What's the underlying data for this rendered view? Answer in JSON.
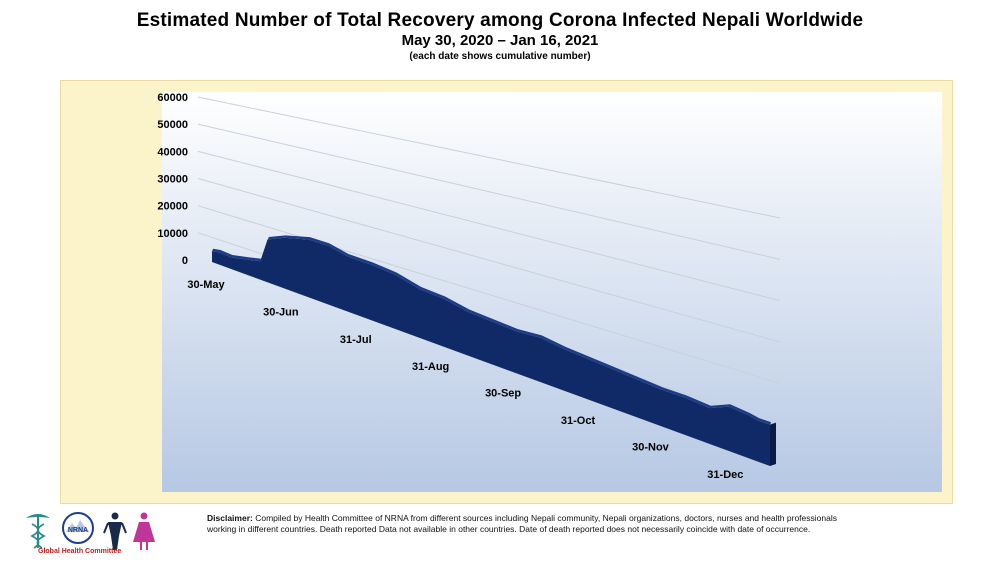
{
  "chart_data": {
    "type": "area",
    "title": "Estimated Number of Total Recovery among Corona Infected Nepali Worldwide",
    "subtitle": "May 30, 2020 – Jan 16, 2021",
    "note": "(each date shows cumulative number)",
    "ylim": [
      0,
      60000
    ],
    "y_ticks": [
      "0",
      "10000",
      "20000",
      "30000",
      "40000",
      "50000",
      "60000"
    ],
    "x_tick_labels": [
      "30-May",
      "30-Jun",
      "31-Jul",
      "31-Aug",
      "30-Sep",
      "31-Oct",
      "30-Nov",
      "31-Dec"
    ],
    "x_tick_days": [
      0,
      31,
      62,
      93,
      123,
      154,
      184,
      215
    ],
    "x_range_days": [
      0,
      231
    ],
    "grid": true,
    "legend": "none",
    "series": [
      {
        "color": "#0f2a66",
        "points": [
          [
            0,
            4000
          ],
          [
            3,
            4500
          ],
          [
            8,
            4200
          ],
          [
            15,
            5500
          ],
          [
            20,
            6500
          ],
          [
            23,
            15000
          ],
          [
            30,
            17500
          ],
          [
            40,
            19500
          ],
          [
            48,
            19500
          ],
          [
            56,
            18000
          ],
          [
            66,
            17800
          ],
          [
            76,
            17000
          ],
          [
            86,
            15000
          ],
          [
            96,
            14500
          ],
          [
            106,
            13000
          ],
          [
            116,
            12500
          ],
          [
            126,
            12000
          ],
          [
            136,
            12500
          ],
          [
            146,
            11500
          ],
          [
            156,
            11000
          ],
          [
            166,
            10500
          ],
          [
            176,
            10000
          ],
          [
            186,
            9500
          ],
          [
            196,
            9500
          ],
          [
            206,
            9000
          ],
          [
            214,
            11000
          ],
          [
            222,
            10500
          ],
          [
            226,
            10000
          ],
          [
            231,
            10000
          ]
        ]
      }
    ]
  },
  "footer": {
    "logo_text": "NRNA",
    "logo_caption": "Global Health Committee",
    "disclaimer_label": "Disclaimer:",
    "disclaimer_text": "Compiled by Health Committee of NRNA from different sources including Nepali community, Nepali organizations, doctors, nurses and health professionals working in different countries. Death reported Data not available in other countries. Date of death reported does not necessarily coincide with date of occurrence."
  }
}
